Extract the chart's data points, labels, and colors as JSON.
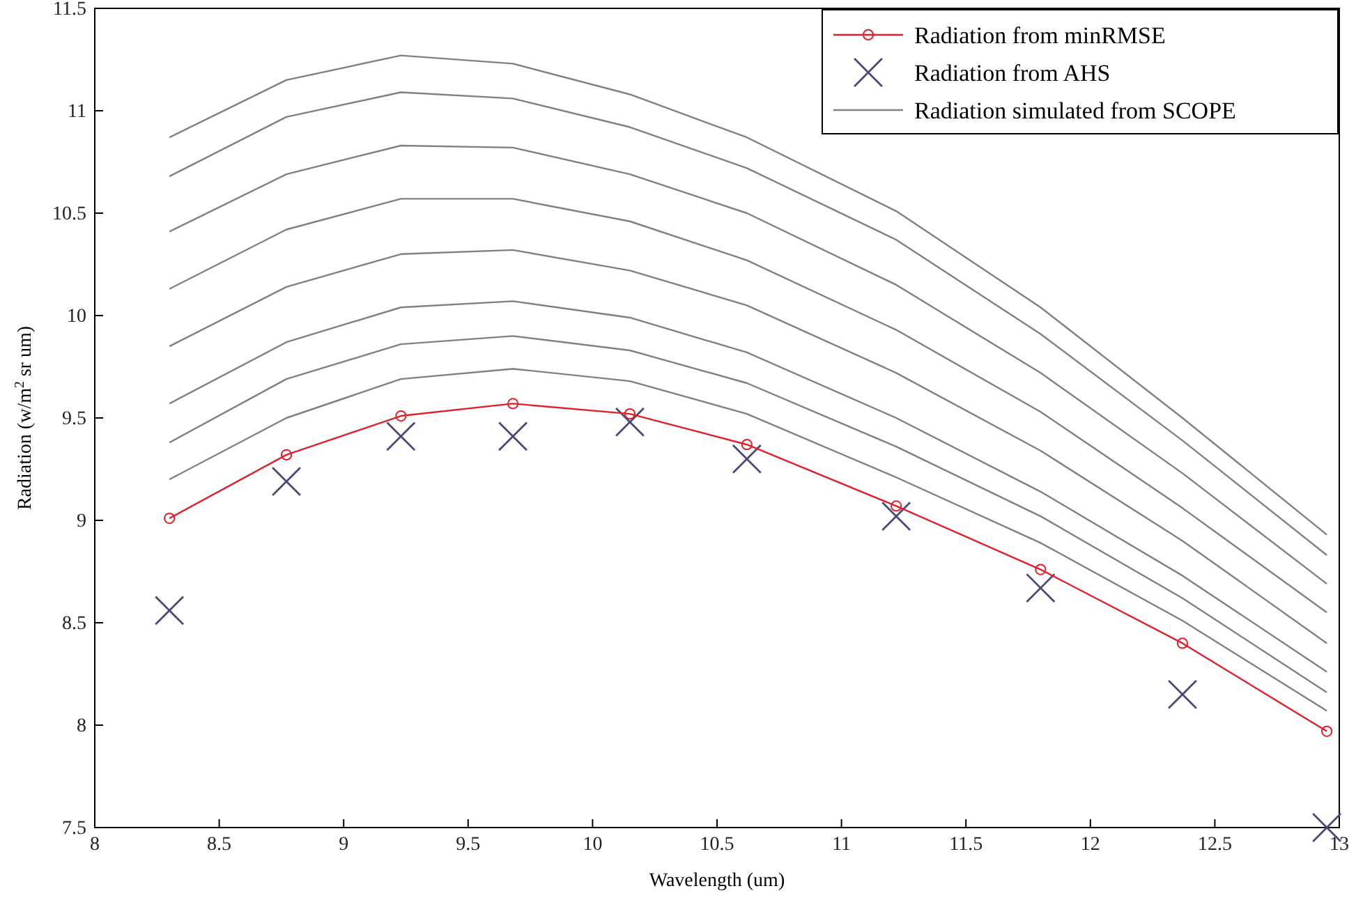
{
  "chart_data": {
    "type": "line",
    "xlabel": "Wavelength (um)",
    "ylabel": "Radiation (w/m$^{2}$ sr um)",
    "x": [
      8.3,
      8.77,
      9.23,
      9.68,
      10.15,
      10.62,
      11.22,
      11.8,
      12.37,
      12.95
    ],
    "xlim": [
      8,
      13
    ],
    "xticks": [
      8,
      8.5,
      9,
      9.5,
      10,
      10.5,
      11,
      11.5,
      12,
      12.5,
      13
    ],
    "ylim": [
      7.5,
      11.5
    ],
    "yticks": [
      7.5,
      8,
      8.5,
      9,
      9.5,
      10,
      10.5,
      11,
      11.5
    ],
    "grid": false,
    "legend": "top right",
    "series": [
      {
        "name": "Radiation simulated from SCOPE",
        "type": "line",
        "marker": "none",
        "color": "#808080",
        "values": [
          10.87,
          11.15,
          11.27,
          11.23,
          11.08,
          10.87,
          10.51,
          10.04,
          9.5,
          8.93
        ]
      },
      {
        "type": "line",
        "marker": "none",
        "color": "#808080",
        "values": [
          10.68,
          10.97,
          11.09,
          11.06,
          10.92,
          10.72,
          10.37,
          9.91,
          9.39,
          8.83
        ]
      },
      {
        "type": "line",
        "marker": "none",
        "color": "#808080",
        "values": [
          10.41,
          10.69,
          10.83,
          10.82,
          10.69,
          10.5,
          10.15,
          9.72,
          9.23,
          8.69
        ]
      },
      {
        "type": "line",
        "marker": "none",
        "color": "#808080",
        "values": [
          10.13,
          10.42,
          10.57,
          10.57,
          10.46,
          10.27,
          9.93,
          9.53,
          9.06,
          8.55
        ]
      },
      {
        "type": "line",
        "marker": "none",
        "color": "#808080",
        "values": [
          9.85,
          10.14,
          10.3,
          10.32,
          10.22,
          10.05,
          9.72,
          9.34,
          8.9,
          8.4
        ]
      },
      {
        "type": "line",
        "marker": "none",
        "color": "#808080",
        "values": [
          9.57,
          9.87,
          10.04,
          10.07,
          9.99,
          9.82,
          9.5,
          9.14,
          8.73,
          8.26
        ]
      },
      {
        "type": "line",
        "marker": "none",
        "color": "#808080",
        "values": [
          9.38,
          9.69,
          9.86,
          9.9,
          9.83,
          9.67,
          9.36,
          9.02,
          8.62,
          8.16
        ]
      },
      {
        "type": "line",
        "marker": "none",
        "color": "#808080",
        "values": [
          9.2,
          9.5,
          9.69,
          9.74,
          9.68,
          9.52,
          9.21,
          8.89,
          8.51,
          8.07
        ]
      },
      {
        "name": "Radiation from AHS",
        "type": "scatter",
        "marker": "cross",
        "color": "#4a4a7a",
        "values": [
          8.56,
          9.19,
          9.41,
          9.41,
          9.48,
          9.3,
          9.02,
          8.67,
          8.15,
          7.5
        ]
      },
      {
        "name": "Radiation from minRMSE",
        "marker": "circle",
        "color": "#e0202a",
        "values": [
          9.01,
          9.32,
          9.51,
          9.57,
          9.52,
          9.37,
          9.07,
          8.76,
          8.4,
          7.97
        ]
      }
    ]
  }
}
